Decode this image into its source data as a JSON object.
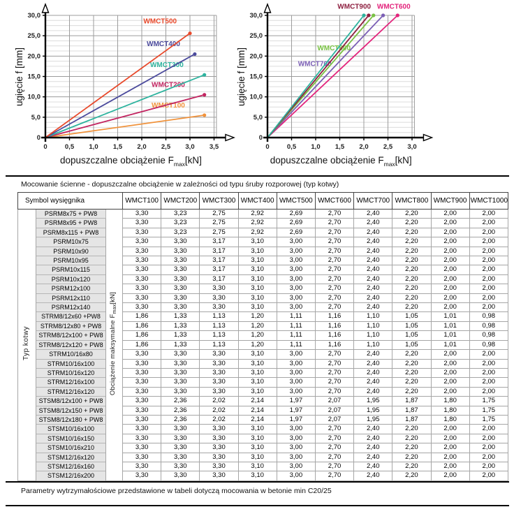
{
  "intro_bar": "Mocowanie ścienne - dopuszczalne obciążenie w zależności od typu śruby rozporowej (typ kotwy)",
  "footer_bar": "Parametry wytrzymałościowe przedstawione w tabeli dotyczą mocowania w betonie min C20/25",
  "chart_data": [
    {
      "type": "line",
      "title": "",
      "xlabel": {
        "pre": "dopuszczalne obciążenie F",
        "sub": "max",
        "post": "[kN]"
      },
      "ylabel": "ugięcie f [mm]",
      "xlim": [
        0,
        3.55
      ],
      "ylim": [
        0,
        30
      ],
      "grid": true,
      "legend_position": "inline-labels",
      "xtick_vals": [
        0,
        0.5,
        1.0,
        1.5,
        2.0,
        2.5,
        3.0,
        3.5
      ],
      "xtick_labels": [
        "0",
        "0,5",
        "1,0",
        "1,5",
        "2,0",
        "2,5",
        "3,0",
        "3,5"
      ],
      "ytick_vals": [
        0,
        5,
        10,
        15,
        20,
        25,
        30
      ],
      "ytick_labels": [
        "0",
        "5,0",
        "10,0",
        "15,0",
        "20,0",
        "25,0",
        "30,0"
      ],
      "series": [
        {
          "name": "WMCT100",
          "color": "#f0923b",
          "x": [
            0,
            3.3
          ],
          "y": [
            0,
            5.5
          ],
          "label_at": [
            2.55,
            7.4
          ]
        },
        {
          "name": "WMCT200",
          "color": "#c22460",
          "x": [
            0,
            3.3
          ],
          "y": [
            0,
            10.5
          ],
          "label_at": [
            2.55,
            12.4
          ]
        },
        {
          "name": "WMCT300",
          "color": "#2db39e",
          "x": [
            0,
            3.3
          ],
          "y": [
            0,
            15.4
          ],
          "label_at": [
            2.52,
            17.3
          ]
        },
        {
          "name": "WMCT400",
          "color": "#4b4a9c",
          "x": [
            0,
            3.1
          ],
          "y": [
            0,
            20.5
          ],
          "label_at": [
            2.45,
            22.5
          ]
        },
        {
          "name": "WMCT500",
          "color": "#e8492b",
          "x": [
            0,
            3.0
          ],
          "y": [
            0,
            25.6
          ],
          "label_at": [
            2.38,
            28.0
          ]
        }
      ]
    },
    {
      "type": "line",
      "title": "",
      "xlabel": {
        "pre": "dopuszczalne obciążenie F",
        "sub": "max",
        "post": "[kN]"
      },
      "ylabel": "ugięcie f [mm]",
      "xlim": [
        0,
        3.05
      ],
      "ylim": [
        0,
        30
      ],
      "grid": true,
      "legend_position": "inline-labels",
      "xtick_vals": [
        0,
        0.5,
        1.0,
        1.5,
        2.0,
        2.5,
        3.0
      ],
      "xtick_labels": [
        "0",
        "0,5",
        "1,0",
        "1,5",
        "2,0",
        "2,5",
        "3,0"
      ],
      "ytick_vals": [
        0,
        5,
        10,
        15,
        20,
        25,
        30
      ],
      "ytick_labels": [
        "0",
        "5,0",
        "10,0",
        "15,0",
        "20,0",
        "25,0",
        "30,0"
      ],
      "series": [
        {
          "name": "WMCT600",
          "color": "#e3247c",
          "x": [
            0,
            2.7
          ],
          "y": [
            0,
            30
          ],
          "label_at": [
            2.62,
            31.6
          ]
        },
        {
          "name": "WMCT700",
          "color": "#7b5fb5",
          "x": [
            0,
            2.4
          ],
          "y": [
            0,
            30
          ],
          "label_at": [
            0.98,
            17.6
          ]
        },
        {
          "name": "WMCT800",
          "color": "#79c143",
          "x": [
            0,
            2.2
          ],
          "y": [
            0,
            30
          ],
          "label_at": [
            1.38,
            21.4
          ]
        },
        {
          "name": "WMCT900",
          "color": "#8e2040",
          "x": [
            0,
            2.1
          ],
          "y": [
            0,
            30
          ],
          "label_at": [
            1.8,
            31.6
          ]
        },
        {
          "name": "WMCT1000",
          "color": "#2db39e",
          "x": [
            0,
            2.0
          ],
          "y": [
            0,
            30
          ],
          "label_at": [
            1.78,
            34.0
          ]
        }
      ]
    }
  ],
  "table": {
    "corner_header": "Symbol wysięgnika",
    "col_headers": [
      "WMCT100",
      "WMCT200",
      "WMCT300",
      "WMCT400",
      "WMCT500",
      "WMCT600",
      "WMCT700",
      "WMCT800",
      "WMCT900",
      "WMCT1000"
    ],
    "row_group_label": "Typ kotwy",
    "value_axis_label": {
      "pre": "Obciążenie maksymalne F",
      "sub": "max",
      "post": "[kN]"
    },
    "rows": [
      {
        "symbol": "PSRM8x75 + PW8",
        "values": [
          "3,30",
          "3,23",
          "2,75",
          "2,92",
          "2,69",
          "2,70",
          "2,40",
          "2,20",
          "2,00",
          "2,00"
        ]
      },
      {
        "symbol": "PSRM8x95 + PW8",
        "values": [
          "3,30",
          "3,23",
          "2,75",
          "2,92",
          "2,69",
          "2,70",
          "2,40",
          "2,20",
          "2,00",
          "2,00"
        ]
      },
      {
        "symbol": "PSRM8x115 + PW8",
        "values": [
          "3,30",
          "3,23",
          "2,75",
          "2,92",
          "2,69",
          "2,70",
          "2,40",
          "2,20",
          "2,00",
          "2,00"
        ]
      },
      {
        "symbol": "PSRM10x75",
        "values": [
          "3,30",
          "3,30",
          "3,17",
          "3,10",
          "3,00",
          "2,70",
          "2,40",
          "2,20",
          "2,00",
          "2,00"
        ]
      },
      {
        "symbol": "PSRM10x90",
        "values": [
          "3,30",
          "3,30",
          "3,17",
          "3,10",
          "3,00",
          "2,70",
          "2,40",
          "2,20",
          "2,00",
          "2,00"
        ]
      },
      {
        "symbol": "PSRM10x95",
        "values": [
          "3,30",
          "3,30",
          "3,17",
          "3,10",
          "3,00",
          "2,70",
          "2,40",
          "2,20",
          "2,00",
          "2,00"
        ]
      },
      {
        "symbol": "PSRM10x115",
        "values": [
          "3,30",
          "3,30",
          "3,17",
          "3,10",
          "3,00",
          "2,70",
          "2,40",
          "2,20",
          "2,00",
          "2,00"
        ]
      },
      {
        "symbol": "PSRM10x120",
        "values": [
          "3,30",
          "3,30",
          "3,17",
          "3,10",
          "3,00",
          "2,70",
          "2,40",
          "2,20",
          "2,00",
          "2,00"
        ]
      },
      {
        "symbol": "PSRM12x100",
        "values": [
          "3,30",
          "3,30",
          "3,30",
          "3,10",
          "3,00",
          "2,70",
          "2,40",
          "2,20",
          "2,00",
          "2,00"
        ]
      },
      {
        "symbol": "PSRM12x110",
        "values": [
          "3,30",
          "3,30",
          "3,30",
          "3,10",
          "3,00",
          "2,70",
          "2,40",
          "2,20",
          "2,00",
          "2,00"
        ]
      },
      {
        "symbol": "PSRM12x140",
        "values": [
          "3,30",
          "3,30",
          "3,30",
          "3,10",
          "3,00",
          "2,70",
          "2,40",
          "2,20",
          "2,00",
          "2,00"
        ]
      },
      {
        "symbol": "STRM8/12x60 +PW8",
        "values": [
          "1,86",
          "1,33",
          "1,13",
          "1,20",
          "1,11",
          "1,16",
          "1,10",
          "1,05",
          "1,01",
          "0,98"
        ]
      },
      {
        "symbol": "STRM8/12x80 + PW8",
        "values": [
          "1,86",
          "1,33",
          "1,13",
          "1,20",
          "1,11",
          "1,16",
          "1,10",
          "1,05",
          "1,01",
          "0,98"
        ]
      },
      {
        "symbol": "STRM8/12x100 + PW8",
        "values": [
          "1,86",
          "1,33",
          "1,13",
          "1,20",
          "1,11",
          "1,16",
          "1,10",
          "1,05",
          "1,01",
          "0,98"
        ]
      },
      {
        "symbol": "STRM8/12x120 + PW8",
        "values": [
          "1,86",
          "1,33",
          "1,13",
          "1,20",
          "1,11",
          "1,16",
          "1,10",
          "1,05",
          "1,01",
          "0,98"
        ]
      },
      {
        "symbol": "STRM10/16x80",
        "values": [
          "3,30",
          "3,30",
          "3,30",
          "3,10",
          "3,00",
          "2,70",
          "2,40",
          "2,20",
          "2,00",
          "2,00"
        ]
      },
      {
        "symbol": "STRM10/16x100",
        "values": [
          "3,30",
          "3,30",
          "3,30",
          "3,10",
          "3,00",
          "2,70",
          "2,40",
          "2,20",
          "2,00",
          "2,00"
        ]
      },
      {
        "symbol": "STRM10/16x120",
        "values": [
          "3,30",
          "3,30",
          "3,30",
          "3,10",
          "3,00",
          "2,70",
          "2,40",
          "2,20",
          "2,00",
          "2,00"
        ]
      },
      {
        "symbol": "STRM12/16x100",
        "values": [
          "3,30",
          "3,30",
          "3,30",
          "3,10",
          "3,00",
          "2,70",
          "2,40",
          "2,20",
          "2,00",
          "2,00"
        ]
      },
      {
        "symbol": "STRM12/16x120",
        "values": [
          "3,30",
          "3,30",
          "3,30",
          "3,10",
          "3,00",
          "2,70",
          "2,40",
          "2,20",
          "2,00",
          "2,00"
        ]
      },
      {
        "symbol": "STSM8/12x100 + PW8",
        "values": [
          "3,30",
          "2,36",
          "2,02",
          "2,14",
          "1,97",
          "2,07",
          "1,95",
          "1,87",
          "1,80",
          "1,75"
        ]
      },
      {
        "symbol": "STSM8/12x150 + PW8",
        "values": [
          "3,30",
          "2,36",
          "2,02",
          "2,14",
          "1,97",
          "2,07",
          "1,95",
          "1,87",
          "1,80",
          "1,75"
        ]
      },
      {
        "symbol": "STSM8/12x180 + PW8",
        "values": [
          "3,30",
          "2,36",
          "2,02",
          "2,14",
          "1,97",
          "2,07",
          "1,95",
          "1,87",
          "1,80",
          "1,75"
        ]
      },
      {
        "symbol": "STSM10/16x100",
        "values": [
          "3,30",
          "3,30",
          "3,30",
          "3,10",
          "3,00",
          "2,70",
          "2,40",
          "2,20",
          "2,00",
          "2,00"
        ]
      },
      {
        "symbol": "STSM10/16x150",
        "values": [
          "3,30",
          "3,30",
          "3,30",
          "3,10",
          "3,00",
          "2,70",
          "2,40",
          "2,20",
          "2,00",
          "2,00"
        ]
      },
      {
        "symbol": "STSM10/16x210",
        "values": [
          "3,30",
          "3,30",
          "3,30",
          "3,10",
          "3,00",
          "2,70",
          "2,40",
          "2,20",
          "2,00",
          "2,00"
        ]
      },
      {
        "symbol": "STSM12/16x120",
        "values": [
          "3,30",
          "3,30",
          "3,30",
          "3,10",
          "3,00",
          "2,70",
          "2,40",
          "2,20",
          "2,00",
          "2,00"
        ]
      },
      {
        "symbol": "STSM12/16x160",
        "values": [
          "3,30",
          "3,30",
          "3,30",
          "3,10",
          "3,00",
          "2,70",
          "2,40",
          "2,20",
          "2,00",
          "2,00"
        ]
      },
      {
        "symbol": "STSM12/16x200",
        "values": [
          "3,30",
          "3,30",
          "3,30",
          "3,10",
          "3,00",
          "2,70",
          "2,40",
          "2,20",
          "2,00",
          "2,00"
        ]
      }
    ]
  }
}
